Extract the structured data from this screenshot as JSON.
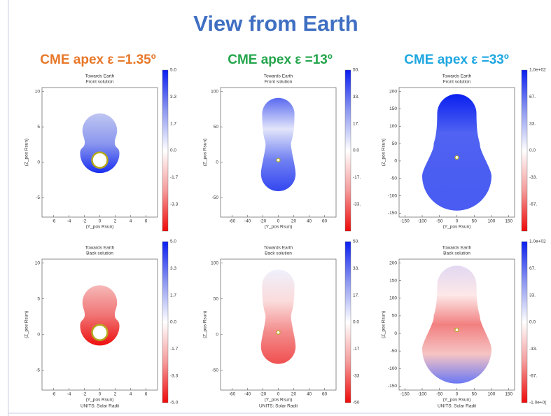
{
  "title": "View from Earth",
  "panels": [
    {
      "header": "CME apex ε =1.35º",
      "plots": [
        {
          "title": "Towards Earth",
          "subtitle": "Front solution",
          "xticks": [
            "-6",
            "-4",
            "-2",
            "0",
            "2",
            "4",
            "6"
          ],
          "yticks": [
            "10",
            "5",
            "0",
            "-5"
          ],
          "xlabel": "(Y_pos Rsun)",
          "ylabel": "(Z_pos Rsun)",
          "colorbar": [
            "5.0",
            "3.3",
            "1.7",
            "0.0",
            "-1.7",
            "-3.3"
          ]
        },
        {
          "title": "Towards Earth",
          "subtitle": "Back solution",
          "xticks": [
            "-6",
            "-4",
            "-2",
            "0",
            "2",
            "4",
            "6"
          ],
          "yticks": [
            "10",
            "5",
            "0",
            "-5"
          ],
          "xlabel": "(Y_pos Rsun)",
          "ylabel": "(Z_pos Rsun)",
          "colorbar": [
            "5.0",
            "3.3",
            "1.7",
            "0.0",
            "-1.7",
            "-3.3",
            "-5.0"
          ],
          "footer": "UNITS: Solar Radii"
        }
      ]
    },
    {
      "header": "CME apex ε =13º",
      "plots": [
        {
          "title": "Towards Earth",
          "subtitle": "Front solution",
          "xticks": [
            "-60",
            "-40",
            "-20",
            "0",
            "20",
            "40",
            "60"
          ],
          "yticks": [
            "100",
            "50",
            "0",
            "-50"
          ],
          "xlabel": "(Y_pos Rsun)",
          "ylabel": "(Z_pos Rsun)",
          "colorbar": [
            "50.",
            "33.",
            "17.",
            "0.0",
            "-17.",
            "-33."
          ]
        },
        {
          "title": "Towards Earth",
          "subtitle": "Back solution",
          "xticks": [
            "-60",
            "-40",
            "-20",
            "0",
            "20",
            "40",
            "60"
          ],
          "yticks": [
            "100",
            "50",
            "0",
            "-50"
          ],
          "xlabel": "(Y_pos Rsun)",
          "ylabel": "(Z_pos Rsun)",
          "colorbar": [
            "50.",
            "33.",
            "17.",
            "0.0",
            "-17",
            "-33",
            "-50"
          ],
          "footer": "UNITS: Solar Radii"
        }
      ]
    },
    {
      "header": "CME apex ε =33º",
      "plots": [
        {
          "title": "Towards Earth",
          "subtitle": "Front solution",
          "xticks": [
            "-150",
            "-100",
            "-50",
            "0",
            "50",
            "100",
            "150"
          ],
          "yticks": [
            "200",
            "150",
            "100",
            "50",
            "0",
            "-50",
            "-100",
            "-150"
          ],
          "xlabel": "(Y_pos Rsun)",
          "ylabel": "(Z_pos Rsun)",
          "colorbar": [
            "1.0e+02",
            "67.",
            "33.",
            "0.0",
            "-33.",
            "-67."
          ]
        },
        {
          "title": "Towards Earth",
          "subtitle": "Back solution",
          "xticks": [
            "-150",
            "-100",
            "-50",
            "0",
            "50",
            "100",
            "150"
          ],
          "yticks": [
            "200",
            "150",
            "100",
            "50",
            "0",
            "-50",
            "-100",
            "-150"
          ],
          "xlabel": "(Y_pos Rsun)",
          "ylabel": "(Z_pos Rsun)",
          "colorbar": [
            "1.0e+02",
            "67.",
            "33.",
            "0.0",
            "-33.",
            "-67.",
            "-1.0e+0("
          ],
          "footer": "UNITS: Solar Radii"
        }
      ]
    }
  ]
}
